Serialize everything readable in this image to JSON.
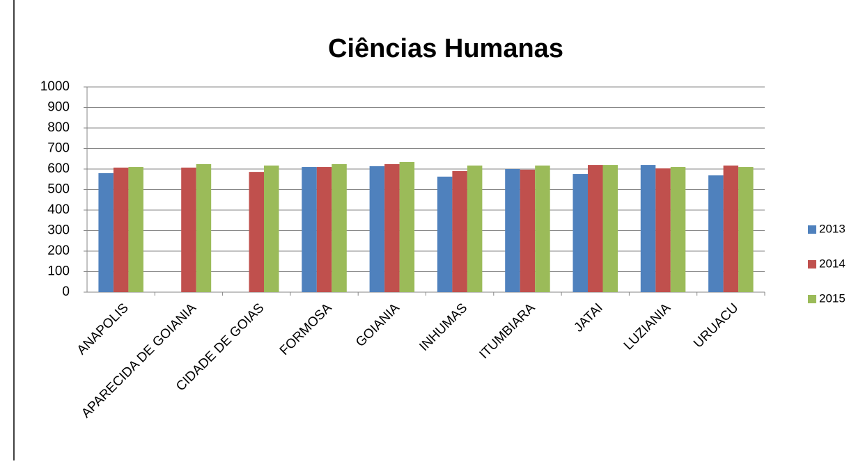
{
  "chart_data": {
    "type": "bar",
    "title": "Ciências Humanas",
    "categories": [
      "ANAPOLIS",
      "APARECIDA DE GOIANIA",
      "CIDADE DE GOIAS",
      "FORMOSA",
      "GOIANIA",
      "INHUMAS",
      "ITUMBIARA",
      "JATAI",
      "LUZIANIA",
      "URUACU"
    ],
    "series": [
      {
        "name": "2013",
        "color": "#4f81bd",
        "values": [
          580,
          null,
          null,
          610,
          614,
          563,
          600,
          576,
          620,
          569
        ]
      },
      {
        "name": "2014",
        "color": "#c0504d",
        "values": [
          607,
          607,
          586,
          610,
          624,
          590,
          597,
          620,
          603,
          617
        ]
      },
      {
        "name": "2015",
        "color": "#9bbb59",
        "values": [
          610,
          624,
          617,
          624,
          634,
          617,
          617,
          620,
          610,
          610
        ]
      }
    ],
    "ylim": [
      0,
      1000
    ],
    "yticks": [
      0,
      100,
      200,
      300,
      400,
      500,
      600,
      700,
      800,
      900,
      1000
    ],
    "grid": true,
    "legend": "right"
  }
}
